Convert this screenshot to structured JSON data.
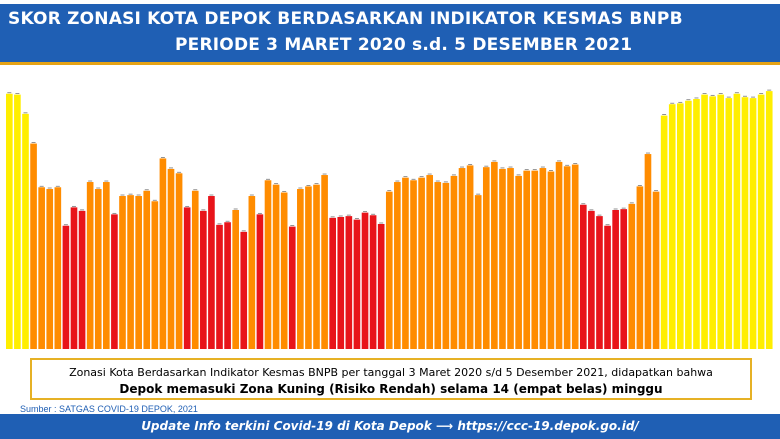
{
  "header": {
    "title_line1": "SKOR ZONASI KOTA DEPOK BERDASARKAN INDIKATOR KESMAS BNPB",
    "title_line2": "PERIODE 3 MARET 2020 s.d. 5 DESEMBER 2021"
  },
  "colors": {
    "yellow": "#ffee00",
    "orange": "#ff8c00",
    "red": "#e8141a",
    "header_blue": "#1f5fb4",
    "accent_gold": "#e6a316"
  },
  "chart_data": {
    "type": "bar",
    "title": "SKOR ZONASI KOTA DEPOK BERDASARKAN INDIKATOR KESMAS BNPB",
    "ylim": [
      0,
      3.1
    ],
    "grid": false,
    "values": [
      2.92,
      2.91,
      2.69,
      2.35,
      1.85,
      1.83,
      1.85,
      1.41,
      1.62,
      1.58,
      1.91,
      1.83,
      1.91,
      1.54,
      1.75,
      1.76,
      1.75,
      1.81,
      1.69,
      2.18,
      2.06,
      2.01,
      1.62,
      1.81,
      1.58,
      1.75,
      1.42,
      1.45,
      1.59,
      1.34,
      1.75,
      1.54,
      1.93,
      1.88,
      1.79,
      1.4,
      1.83,
      1.86,
      1.88,
      1.99,
      1.5,
      1.51,
      1.52,
      1.48,
      1.56,
      1.53,
      1.43,
      1.8,
      1.91,
      1.96,
      1.93,
      1.96,
      1.99,
      1.91,
      1.9,
      1.98,
      2.07,
      2.1,
      1.76,
      2.08,
      2.14,
      2.06,
      2.07,
      1.98,
      2.04,
      2.04,
      2.07,
      2.03,
      2.14,
      2.09,
      2.11,
      1.65,
      1.58,
      1.52,
      1.41,
      1.59,
      1.6,
      1.66,
      1.86,
      2.23,
      1.8,
      2.67,
      2.8,
      2.81,
      2.84,
      2.86,
      2.91,
      2.89,
      2.91,
      2.87,
      2.92,
      2.88,
      2.87,
      2.91,
      2.95
    ],
    "colors_by_zone": [
      "yellow",
      "yellow",
      "yellow",
      "orange",
      "orange",
      "orange",
      "orange",
      "red",
      "red",
      "red",
      "orange",
      "orange",
      "orange",
      "red",
      "orange",
      "orange",
      "orange",
      "orange",
      "orange",
      "orange",
      "orange",
      "orange",
      "red",
      "orange",
      "red",
      "red",
      "red",
      "red",
      "orange",
      "red",
      "orange",
      "red",
      "orange",
      "orange",
      "orange",
      "red",
      "orange",
      "orange",
      "orange",
      "orange",
      "red",
      "red",
      "red",
      "red",
      "red",
      "red",
      "red",
      "orange",
      "orange",
      "orange",
      "orange",
      "orange",
      "orange",
      "orange",
      "orange",
      "orange",
      "orange",
      "orange",
      "orange",
      "orange",
      "orange",
      "orange",
      "orange",
      "orange",
      "orange",
      "orange",
      "orange",
      "orange",
      "orange",
      "orange",
      "orange",
      "red",
      "red",
      "red",
      "red",
      "red",
      "red",
      "orange",
      "orange",
      "orange",
      "orange",
      "yellow",
      "yellow",
      "yellow",
      "yellow",
      "yellow",
      "yellow",
      "yellow",
      "yellow",
      "yellow",
      "yellow",
      "yellow",
      "yellow",
      "yellow",
      "yellow"
    ]
  },
  "note": {
    "line1": "Zonasi Kota Berdasarkan Indikator Kesmas BNPB per tanggal 3 Maret 2020 s/d  5 Desember  2021, didapatkan bahwa",
    "line2": "Depok memasuki Zona Kuning  (Risiko Rendah) selama 14 (empat belas) minggu"
  },
  "source": "Sumber : SATGAS COVID-19 DEPOK, 2021",
  "footer": {
    "text": "Update Info terkini Covid-19 di Kota Depok ⟶ https://ccc-19.depok.go.id/"
  }
}
